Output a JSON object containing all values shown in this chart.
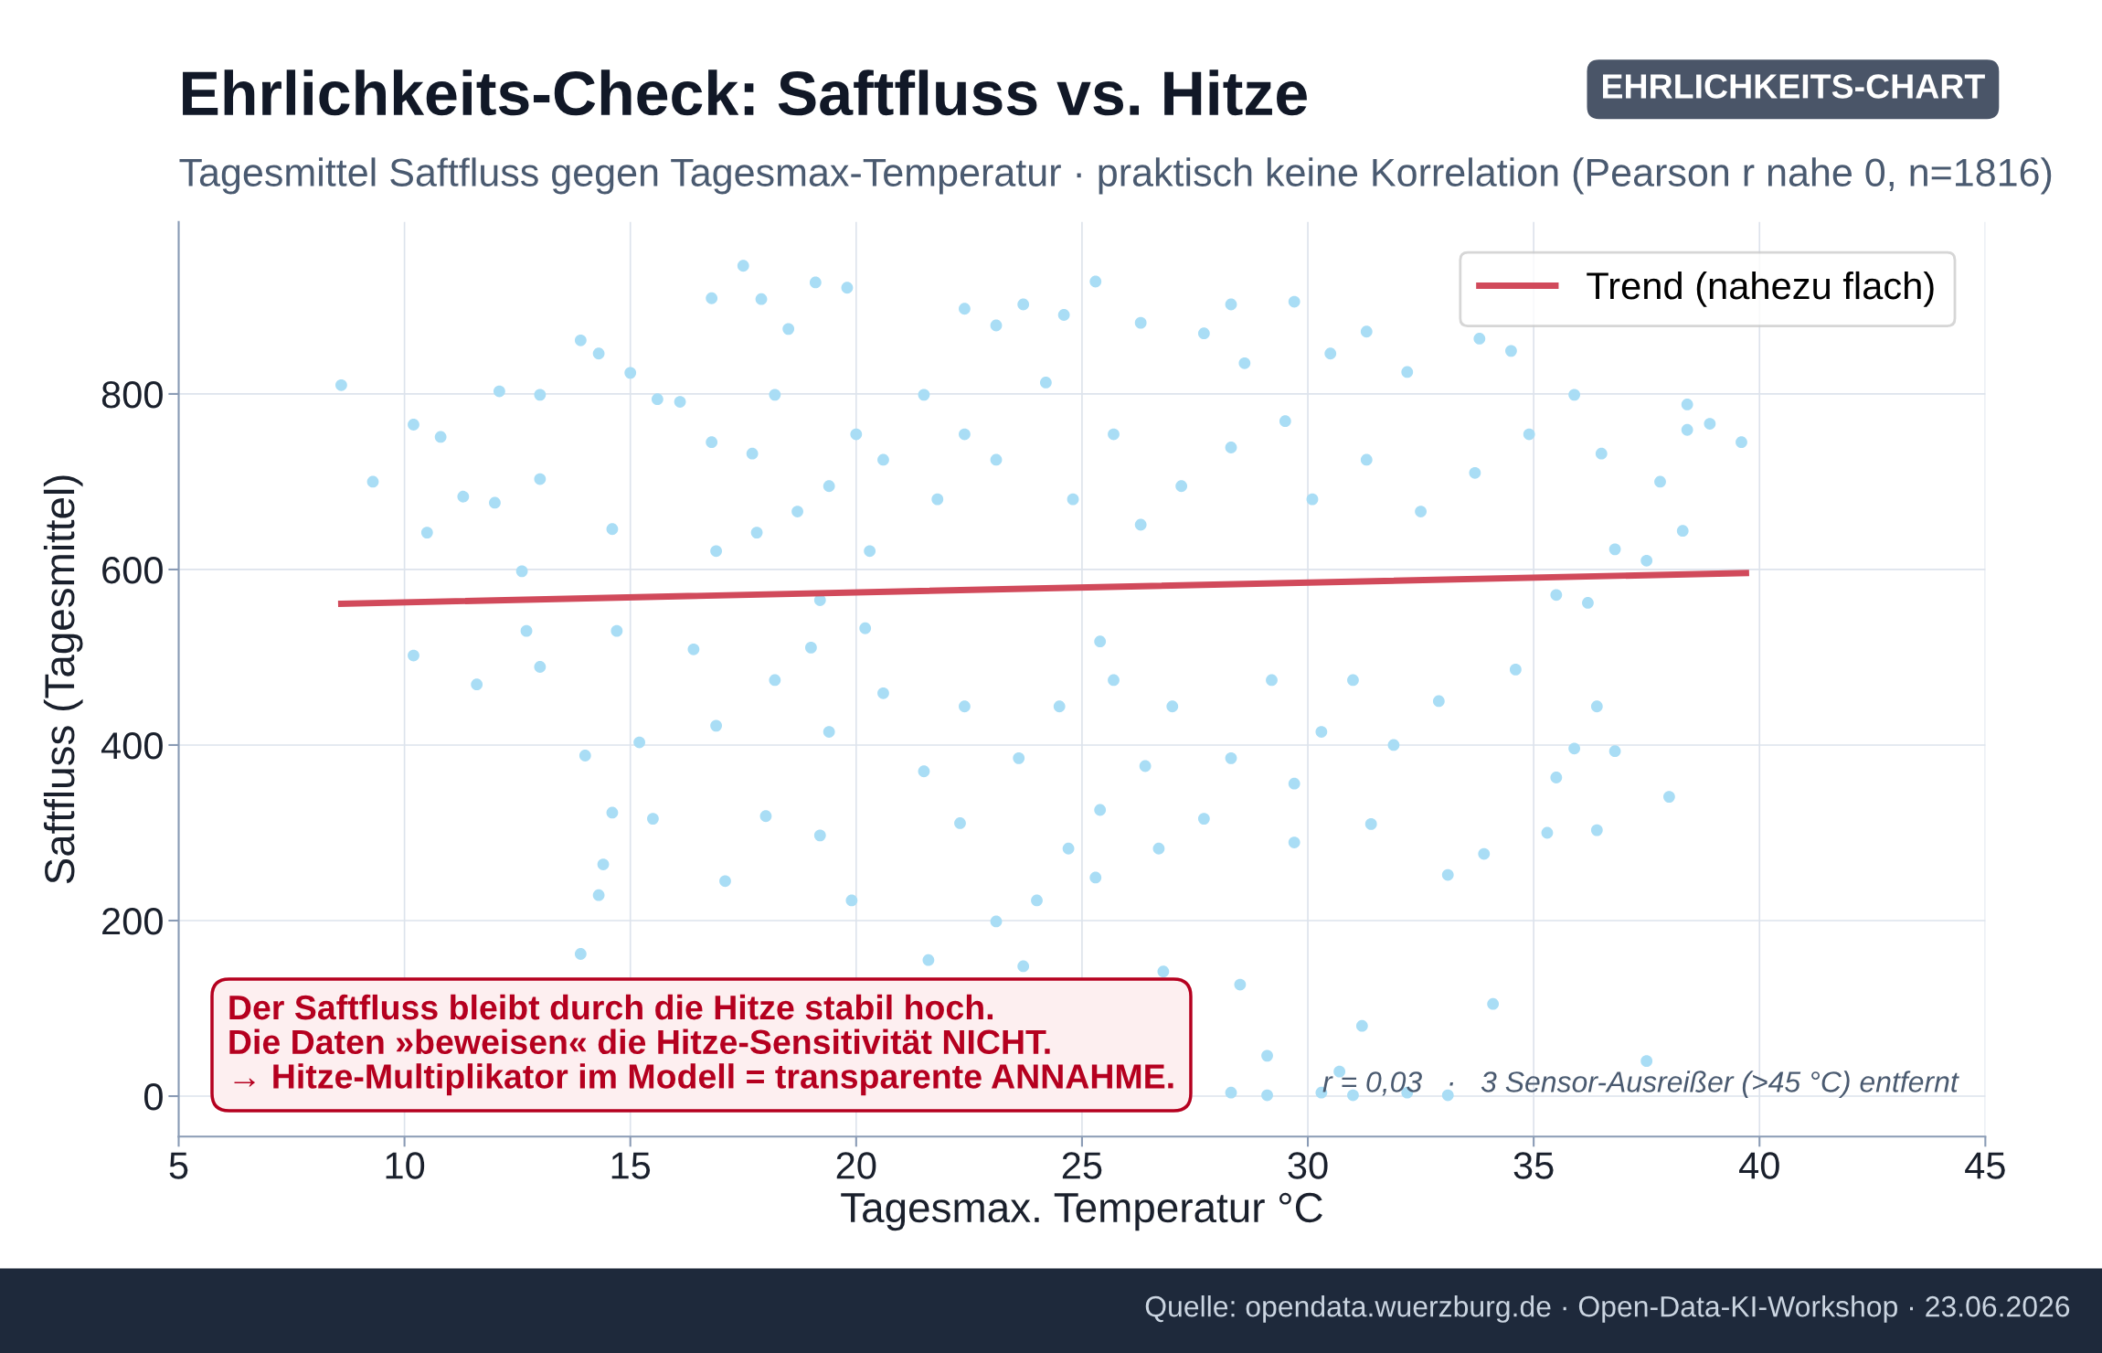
{
  "chart_data": {
    "type": "scatter",
    "title": "Ehrlichkeits-Check: Saftfluss vs. Hitze",
    "subtitle": "Tagesmittel Saftfluss gegen Tagesmax-Temperatur · praktisch keine Korrelation (Pearson r nahe 0, n=1816)",
    "xlabel": "Tagesmax. Temperatur °C",
    "ylabel": "Saftfluss (Tagesmittel)",
    "annotations": [
      "EHRLICHKEITS-CHART",
      "Der Saftfluss bleibt durch die Hitze stabil hoch.\nDie Daten »beweisen« die Hitze-Sensitivität NICHT.\n→ Hitze-Multiplikator im Modell = transparente ANNAHME.",
      "r = 0,03   ·   3 Sensor-Ausreißer (>45 °C) entfernt",
      "Quelle: opendata.wuerzburg.de · Open-Data-KI-Workshop · 23.06.2026"
    ],
    "series": [
      {
        "color": "#a9ddf5",
        "marker": "circle",
        "x": [
          8.6,
          9.3,
          10.2,
          10.5,
          10.2,
          10.8,
          11.3,
          11.6,
          12.0,
          12.1,
          12.6,
          12.7,
          13.0,
          13.0,
          13.0,
          13.9,
          14.0,
          14.3,
          13.9,
          14.4,
          14.3,
          14.6,
          14.7,
          14.6,
          15.0,
          15.2,
          15.5,
          15.6,
          16.1,
          16.4,
          16.8,
          16.8,
          16.9,
          16.9,
          17.1,
          17.5,
          17.8,
          17.9,
          18.0,
          18.5,
          18.7,
          19.1,
          19.2,
          19.0,
          19.2,
          19.8,
          19.9,
          20.0,
          20.2,
          20.6,
          21.6,
          22.4,
          22.3,
          23.1,
          23.1,
          23.7,
          23.7,
          24.0,
          24.6,
          24.7,
          25.3,
          25.4,
          25.4,
          25.3,
          26.3,
          26.4,
          26.7,
          26.8,
          27.7,
          27.7,
          28.3,
          28.6,
          28.5,
          29.1,
          29.7,
          29.7,
          29.7,
          30.3,
          30.5,
          31.3,
          31.2,
          31.4,
          32.2,
          32.9,
          33.1,
          33.8,
          33.9,
          34.1,
          34.5,
          34.6,
          35.5,
          35.3,
          35.9,
          35.9,
          35.5,
          36.4,
          36.4,
          36.5,
          36.2,
          36.8,
          36.8,
          37.5,
          37.5,
          37.8,
          38.0,
          38.3,
          38.4,
          38.4,
          38.9,
          39.6,
          17.7,
          18.2,
          19.4,
          20.3,
          21.5,
          21.8,
          22.4,
          23.1,
          24.2,
          24.8,
          25.7,
          26.3,
          27.2,
          28.3,
          29.5,
          30.1,
          31.3,
          32.5,
          33.7,
          34.9,
          18.2,
          19.4,
          20.6,
          21.5,
          22.4,
          23.6,
          24.5,
          25.7,
          27.0,
          28.3,
          29.2,
          31.0,
          31.9,
          28.3,
          29.1,
          30.3,
          31.0,
          32.2,
          33.1,
          30.7
        ],
        "values": [
          810,
          700,
          765,
          642,
          502,
          751,
          683,
          469,
          676,
          803,
          598,
          530,
          799,
          703,
          489,
          861,
          388,
          846,
          162,
          264,
          229,
          646,
          530,
          323,
          824,
          403,
          316,
          794,
          791,
          509,
          909,
          745,
          621,
          422,
          245,
          946,
          642,
          908,
          319,
          874,
          666,
          927,
          565,
          511,
          297,
          921,
          223,
          754,
          533,
          725,
          155,
          897,
          311,
          878,
          199,
          902,
          148,
          223,
          890,
          282,
          928,
          518,
          326,
          249,
          881,
          376,
          282,
          142,
          869,
          316,
          902,
          835,
          127,
          46,
          905,
          289,
          356,
          415,
          846,
          871,
          80,
          310,
          825,
          450,
          252,
          863,
          276,
          105,
          849,
          486,
          571,
          300,
          799,
          396,
          363,
          303,
          444,
          732,
          562,
          623,
          393,
          610,
          40,
          700,
          341,
          644,
          788,
          759,
          766,
          745,
          732,
          799,
          695,
          621,
          799,
          680,
          754,
          725,
          813,
          680,
          754,
          651,
          695,
          739,
          769,
          680,
          725,
          666,
          710,
          754,
          474,
          415,
          459,
          370,
          444,
          385,
          444,
          474,
          444,
          385,
          474,
          474,
          400,
          4,
          1,
          4,
          1,
          4,
          1,
          28
        ]
      },
      {
        "type": "line",
        "name": "Trend (nahezu flach)",
        "color": "#d14a5b",
        "marker": "none",
        "line_style": "solid",
        "x": [
          8.6,
          39.7
        ],
        "values": [
          561,
          596
        ]
      }
    ],
    "xlim": [
      5,
      45
    ],
    "ylim": [
      -46,
      996
    ],
    "xticks": [
      5,
      10,
      15,
      20,
      25,
      30,
      35,
      40,
      45
    ],
    "yticks": [
      0,
      200,
      400,
      600,
      800
    ],
    "grid": true,
    "legend": "top right"
  }
}
